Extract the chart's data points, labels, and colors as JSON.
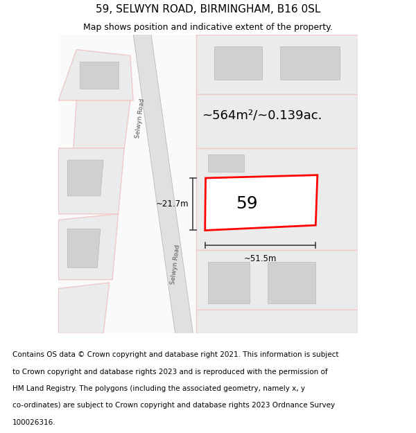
{
  "title": "59, SELWYN ROAD, BIRMINGHAM, B16 0SL",
  "subtitle": "Map shows position and indicative extent of the property.",
  "area_text": "~564m²/~0.139ac.",
  "width_label": "~51.5m",
  "height_label": "~21.7m",
  "number_label": "59",
  "footer_lines": [
    "Contains OS data © Crown copyright and database right 2021. This information is subject",
    "to Crown copyright and database rights 2023 and is reproduced with the permission of",
    "HM Land Registry. The polygons (including the associated geometry, namely x, y",
    "co-ordinates) are subject to Crown copyright and database rights 2023 Ordnance Survey",
    "100026316."
  ],
  "bg_color": "#ffffff",
  "plot_line_color": "#ff0000",
  "light_pink": "#f0c8c8",
  "dim_line_color": "#404040",
  "road_fill": "#e0e0e0",
  "block_fill": "#ebebeb",
  "building_fill": "#d0d0d0",
  "title_fontsize": 11,
  "subtitle_fontsize": 9,
  "footer_fontsize": 7.5,
  "road_label_color": "#555555",
  "road_label_rotation": 83
}
